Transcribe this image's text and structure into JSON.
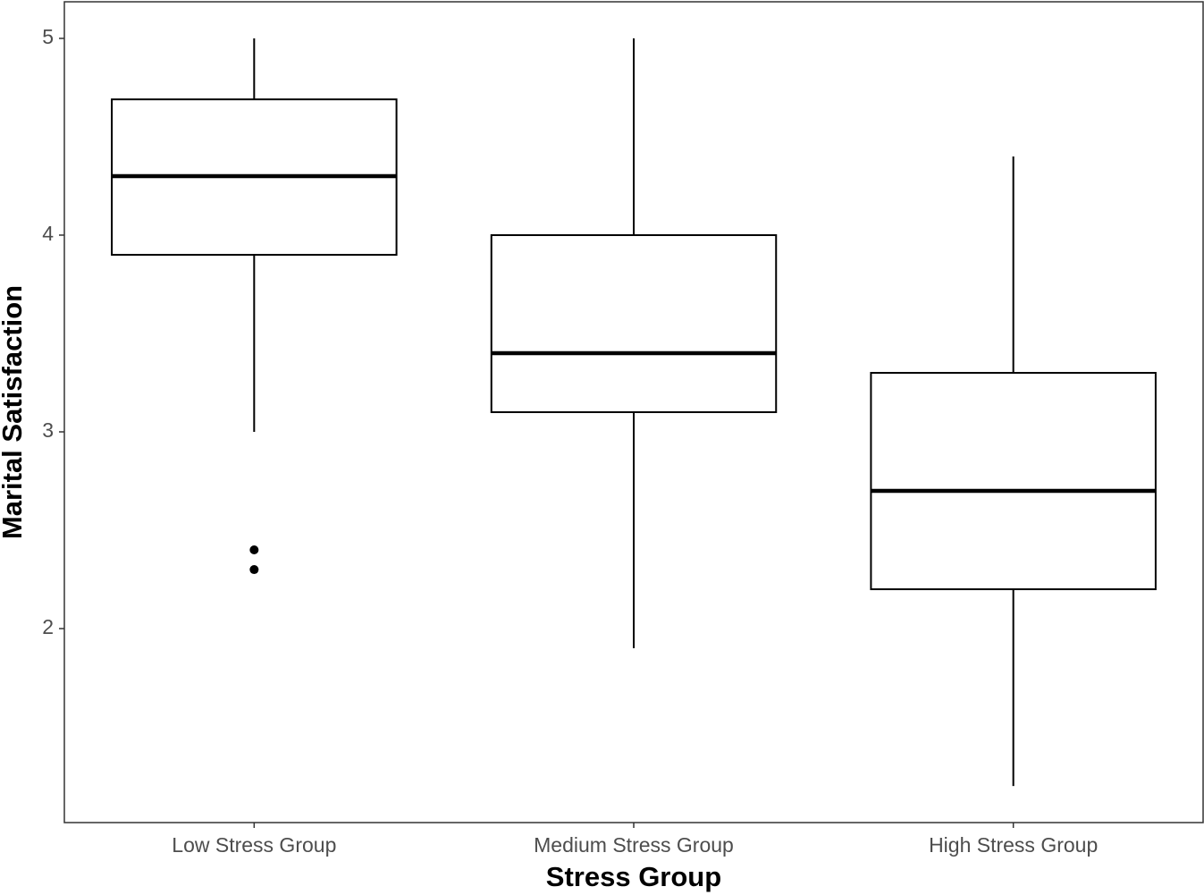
{
  "chart_data": {
    "type": "box",
    "x_label": "Stress Group",
    "y_label": "Marital Satisfaction",
    "categories": [
      "Low Stress Group",
      "Medium Stress Group",
      "High Stress Group"
    ],
    "boxes": [
      {
        "min": 3,
        "q1": 3.9,
        "median": 4.3,
        "q3": 4.69,
        "max": 5,
        "outliers": [
          2.4,
          2.3
        ]
      },
      {
        "min": 1.9,
        "q1": 3.1,
        "median": 3.4,
        "q3": 4,
        "max": 5,
        "outliers": []
      },
      {
        "min": 1.2,
        "q1": 2.2,
        "median": 2.7,
        "q3": 3.3,
        "max": 4.4,
        "outliers": []
      }
    ],
    "color": "#000000",
    "ylim": [
      1.014,
      5.186
    ],
    "yticks": [
      2,
      3,
      4,
      5
    ],
    "grid": false
  }
}
